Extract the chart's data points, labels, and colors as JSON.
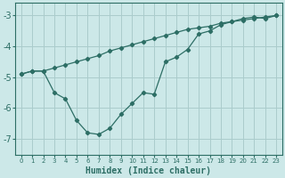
{
  "xlabel": "Humidex (Indice chaleur)",
  "background_color": "#cce8e8",
  "grid_color": "#aacccc",
  "line_color": "#2d6e65",
  "spine_color": "#2d6e65",
  "xlim": [
    -0.5,
    23.5
  ],
  "ylim": [
    -7.5,
    -2.6
  ],
  "yticks": [
    -7,
    -6,
    -5,
    -4,
    -3
  ],
  "xticks": [
    0,
    1,
    2,
    3,
    4,
    5,
    6,
    7,
    8,
    9,
    10,
    11,
    12,
    13,
    14,
    15,
    16,
    17,
    18,
    19,
    20,
    21,
    22,
    23
  ],
  "line1_x": [
    0,
    1,
    2,
    3,
    4,
    5,
    6,
    7,
    8,
    9,
    10,
    11,
    12,
    13,
    14,
    15,
    16,
    17,
    18,
    19,
    20,
    21,
    22,
    23
  ],
  "line1_y": [
    -4.9,
    -4.8,
    -4.8,
    -4.7,
    -4.6,
    -4.5,
    -4.4,
    -4.3,
    -4.15,
    -4.05,
    -3.95,
    -3.85,
    -3.75,
    -3.65,
    -3.55,
    -3.45,
    -3.4,
    -3.35,
    -3.25,
    -3.2,
    -3.15,
    -3.1,
    -3.05,
    -3.0
  ],
  "line2_x": [
    0,
    1,
    2,
    3,
    4,
    5,
    6,
    7,
    8,
    9,
    10,
    11,
    12,
    13,
    14,
    15,
    16,
    17,
    18,
    19,
    20,
    21,
    22,
    23
  ],
  "line2_y": [
    -4.9,
    -4.8,
    -4.8,
    -5.5,
    -5.7,
    -6.4,
    -6.8,
    -6.85,
    -6.65,
    -6.2,
    -5.85,
    -5.5,
    -5.55,
    -4.5,
    -4.35,
    -4.1,
    -3.6,
    -3.5,
    -3.3,
    -3.2,
    -3.1,
    -3.05,
    -3.1,
    -3.0
  ]
}
